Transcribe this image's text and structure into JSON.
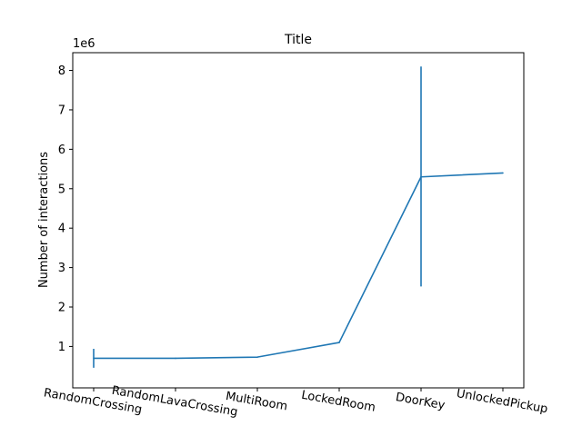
{
  "chart_data": {
    "type": "line",
    "title": "Title",
    "xlabel": "",
    "ylabel": "Number of interactions",
    "y_offset_label": "1e6",
    "y_scale_factor": 1000000,
    "categories": [
      "RandomCrossing",
      "RandomLavaCrossing",
      "MultiRoom",
      "LockedRoom",
      "DoorKey",
      "UnlockedPickup"
    ],
    "series": [
      {
        "values": [
          700000,
          700000,
          730000,
          1100000,
          5300000,
          5400000
        ],
        "error_low": [
          460000,
          null,
          null,
          null,
          2520000,
          null
        ],
        "error_high": [
          940000,
          null,
          null,
          null,
          8100000,
          null
        ]
      }
    ],
    "ylim": [
      -50000,
      8450000
    ],
    "y_ticks": [
      1,
      2,
      3,
      4,
      5,
      6,
      7,
      8
    ],
    "grid": false,
    "line_color": "#1f77b4"
  }
}
